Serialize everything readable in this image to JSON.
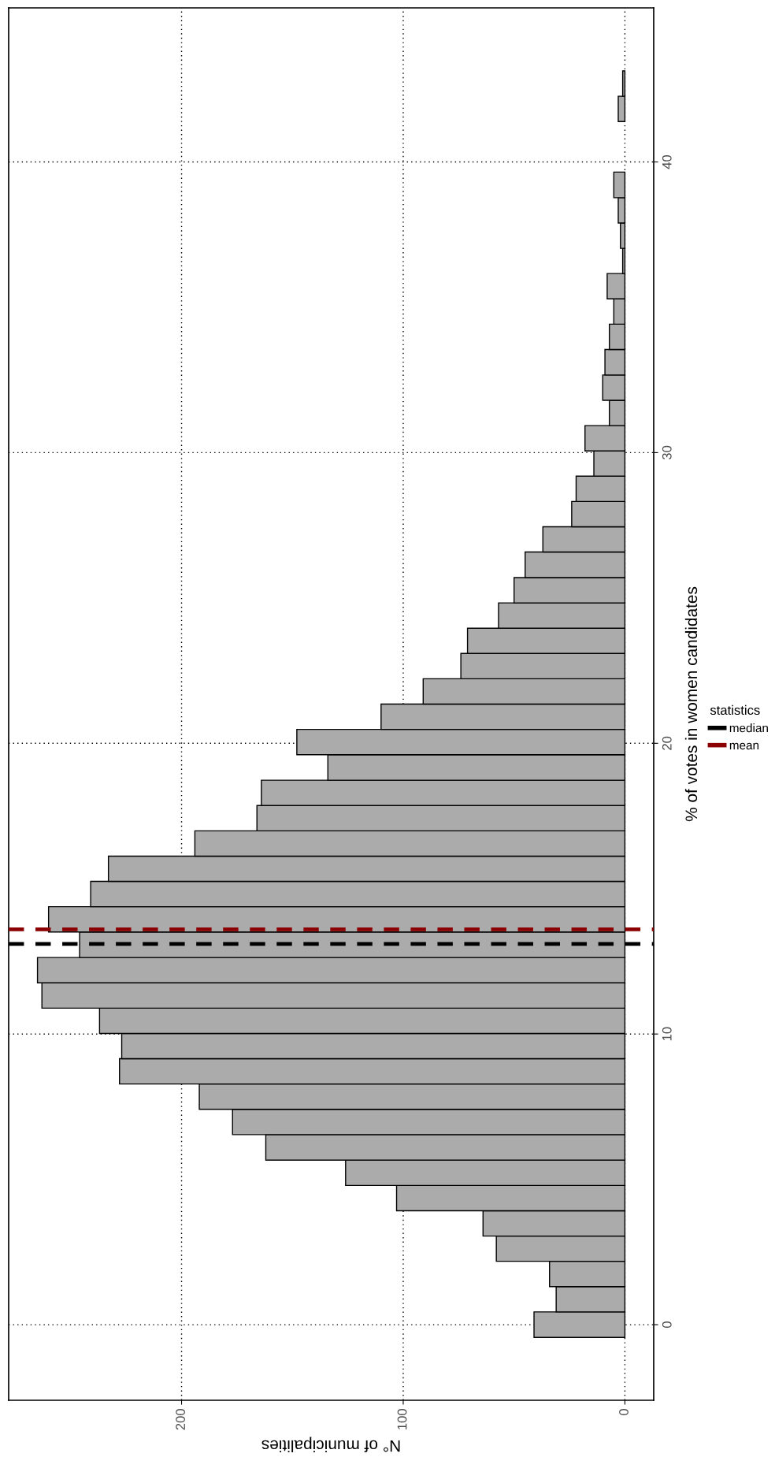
{
  "chart_data": {
    "type": "histogram",
    "orientation": "horizontal",
    "xlabel": "N° of municipalities",
    "ylabel": "% of votes in women candidates",
    "legend_title": "statistics",
    "bins": [
      -0.44,
      0.44,
      1.31,
      2.18,
      3.05,
      3.92,
      4.79,
      5.66,
      6.54,
      7.41,
      8.28,
      9.15,
      10.02,
      10.89,
      11.76,
      12.63,
      13.51,
      14.38,
      15.25,
      16.12,
      16.99,
      17.86,
      18.73,
      19.61,
      20.48,
      21.35,
      22.22,
      23.09,
      23.96,
      24.83,
      25.7,
      26.58,
      27.45,
      28.32,
      29.19,
      30.06,
      30.93,
      31.8,
      32.67,
      33.55,
      34.42,
      35.29,
      36.16,
      37.03,
      37.9,
      38.77,
      39.65,
      40.52,
      41.39,
      42.26,
      43.13
    ],
    "values": [
      41,
      31,
      34,
      58,
      64,
      103,
      126,
      162,
      177,
      192,
      228,
      227,
      237,
      263,
      265,
      246,
      260,
      241,
      233,
      194,
      166,
      164,
      134,
      148,
      110,
      91,
      74,
      71,
      57,
      50,
      45,
      37,
      24,
      22,
      14,
      18,
      7,
      10,
      9,
      7,
      5,
      8,
      1,
      2,
      3,
      5,
      0,
      0,
      3,
      1
    ],
    "color": "#ababab",
    "xlim": [
      278,
      -13
    ],
    "xticks": [
      0,
      100,
      200
    ],
    "ylim": [
      -2.6,
      45.3
    ],
    "yticks": [
      0,
      10,
      20,
      30,
      40
    ],
    "ref_lines": [
      {
        "axis": "y",
        "value": 13.1,
        "label": "median",
        "color": "#000000",
        "line_style": "dashed"
      },
      {
        "axis": "y",
        "value": 13.6,
        "label": "mean",
        "color": "#8b0000",
        "line_style": "dashed"
      }
    ],
    "grid": true,
    "legend": "right"
  }
}
